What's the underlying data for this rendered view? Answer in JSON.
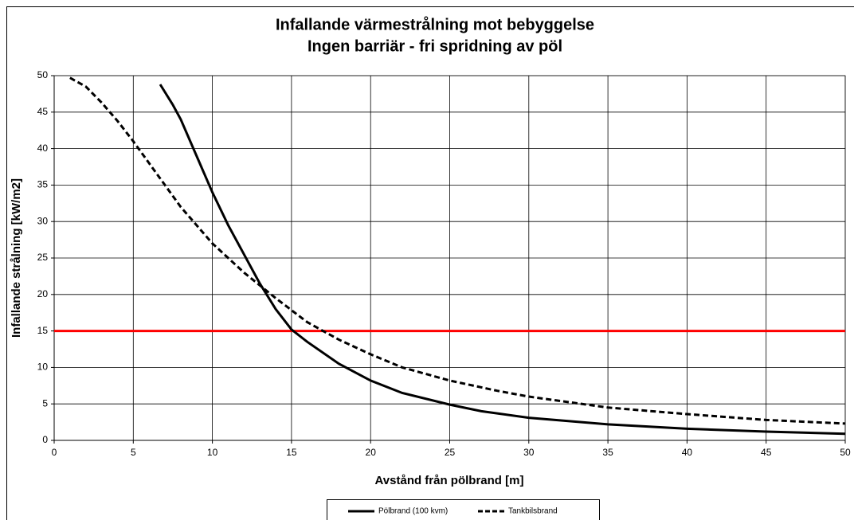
{
  "chart_data": {
    "type": "line",
    "title": "Infallande värmestrålning mot bebyggelse",
    "subtitle": "Ingen barriär - fri spridning av pöl",
    "x_label": "Avstånd från pölbrand [m]",
    "y_label": "Infallande strålning [kW/m2]",
    "xlim": [
      0,
      50
    ],
    "ylim": [
      0,
      50
    ],
    "xticks": [
      0,
      5,
      10,
      15,
      20,
      25,
      30,
      35,
      40,
      45,
      50
    ],
    "yticks": [
      0,
      5,
      10,
      15,
      20,
      25,
      30,
      35,
      40,
      45,
      50
    ],
    "grid": true,
    "legend": "bottom",
    "hline": {
      "value": 15,
      "color": "#ff0000"
    },
    "series": [
      {
        "name": "Pölbrand (100 kvm)",
        "color": "#000000",
        "dash": false,
        "x": [
          6.7,
          7.5,
          8,
          9,
          10,
          11,
          12,
          13,
          14,
          15,
          16,
          18,
          20,
          22,
          25,
          27,
          30,
          35,
          40,
          45,
          50
        ],
        "values": [
          48.8,
          46,
          44,
          39,
          34,
          29.5,
          25.5,
          21.5,
          18,
          15.2,
          13.5,
          10.5,
          8.2,
          6.5,
          4.9,
          4,
          3.1,
          2.2,
          1.6,
          1.2,
          0.9
        ]
      },
      {
        "name": "Tankbilsbrand",
        "color": "#000000",
        "dash": true,
        "x": [
          1,
          2,
          3,
          4,
          5,
          6,
          7,
          8,
          9,
          10,
          12,
          14,
          16,
          18,
          20,
          22,
          25,
          28,
          30,
          35,
          40,
          45,
          50
        ],
        "values": [
          49.7,
          48.5,
          46.3,
          43.8,
          41,
          38,
          35,
          32,
          29.5,
          27,
          23,
          19.5,
          16.2,
          13.8,
          11.8,
          10,
          8.2,
          6.8,
          6,
          4.5,
          3.6,
          2.8,
          2.3
        ]
      }
    ]
  }
}
